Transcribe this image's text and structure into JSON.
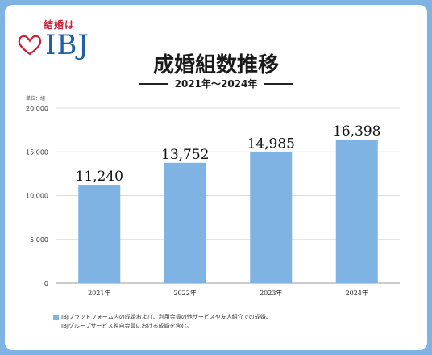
{
  "logo": {
    "tagline": "結婚は",
    "brand": "IBJ",
    "heart_color": "#c9213a"
  },
  "title": "成婚組数推移",
  "subtitle": "2021年〜2024年",
  "unit_label": "単位：組",
  "note": {
    "lines": [
      "IBJプラットフォーム内の成婚および、利用会員の他サービスや友人紹介での成婚、",
      "IBJグループサービス独自会員における成婚を含む。"
    ]
  },
  "colors": {
    "bar": "#7fb3e3",
    "frame": "#7fb3e3",
    "grid": "#dcdcdc"
  },
  "chart_data": {
    "type": "bar",
    "categories": [
      "2021年",
      "2022年",
      "2023年",
      "2024年"
    ],
    "values": [
      11240,
      13752,
      14985,
      16398
    ],
    "value_labels": [
      "11,240",
      "13,752",
      "14,985",
      "16,398"
    ],
    "yticks": [
      "0",
      "5,000",
      "10,000",
      "15,000",
      "20,000"
    ],
    "ylim": [
      0,
      20000
    ],
    "grid": true,
    "legend": "none"
  }
}
